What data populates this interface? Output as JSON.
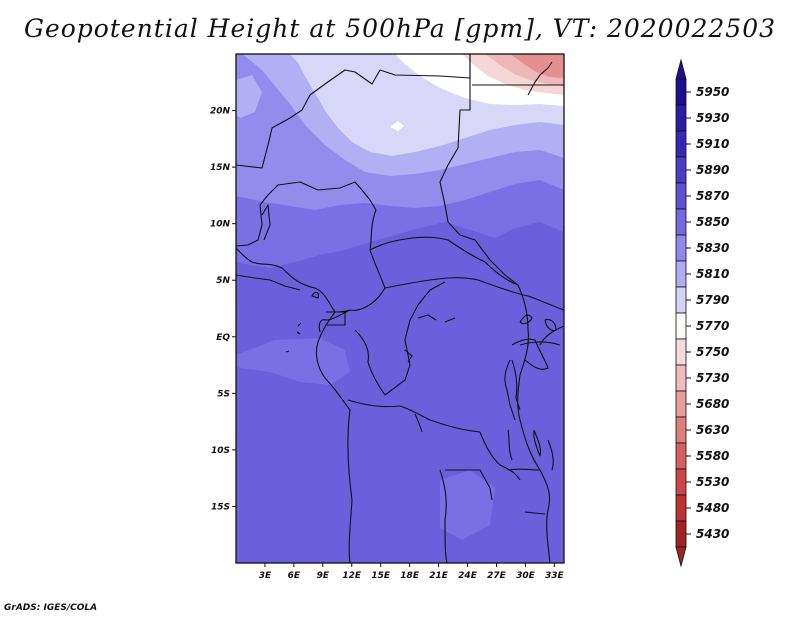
{
  "title": "Geopotential Height at 500hPa [gpm], VT: 2020022503",
  "credit": "GrADS: IGES/COLA",
  "map": {
    "lon_range": [
      0,
      34
    ],
    "lat_range": [
      -20,
      25
    ],
    "lat_ticks": [
      {
        "lat": 20,
        "label": "20N"
      },
      {
        "lat": 15,
        "label": "15N"
      },
      {
        "lat": 10,
        "label": "10N"
      },
      {
        "lat": 5,
        "label": "5N"
      },
      {
        "lat": 0,
        "label": "EQ"
      },
      {
        "lat": -5,
        "label": "5S"
      },
      {
        "lat": -10,
        "label": "10S"
      },
      {
        "lat": -15,
        "label": "15S"
      }
    ],
    "lon_ticks": [
      {
        "lon": 3,
        "label": "3E"
      },
      {
        "lon": 6,
        "label": "6E"
      },
      {
        "lon": 9,
        "label": "9E"
      },
      {
        "lon": 12,
        "label": "12E"
      },
      {
        "lon": 15,
        "label": "15E"
      },
      {
        "lon": 18,
        "label": "18E"
      },
      {
        "lon": 21,
        "label": "21E"
      },
      {
        "lon": 24,
        "label": "24E"
      },
      {
        "lon": 27,
        "label": "27E"
      },
      {
        "lon": 30,
        "label": "30E"
      },
      {
        "lon": 33,
        "label": "33E"
      }
    ]
  },
  "colorbar": {
    "levels": [
      {
        "label": "5950",
        "color": "#1f0f8f"
      },
      {
        "label": "5930",
        "color": "#2a1fa3"
      },
      {
        "label": "5910",
        "color": "#3628b5"
      },
      {
        "label": "5890",
        "color": "#4a3dc4"
      },
      {
        "label": "5870",
        "color": "#5f52d2"
      },
      {
        "label": "5850",
        "color": "#7468e0"
      },
      {
        "label": "5830",
        "color": "#9088ee"
      },
      {
        "label": "5810",
        "color": "#b0abf3"
      },
      {
        "label": "5790",
        "color": "#d4d2f7"
      },
      {
        "label": "5770",
        "color": "#fbf8f8"
      },
      {
        "label": "5750",
        "color": "#f6dada"
      },
      {
        "label": "5730",
        "color": "#efbcbc"
      },
      {
        "label": "5680",
        "color": "#e89c9c"
      },
      {
        "label": "5630",
        "color": "#e07d7d"
      },
      {
        "label": "5580",
        "color": "#d85f5f"
      },
      {
        "label": "5530",
        "color": "#cf4545"
      },
      {
        "label": "5480",
        "color": "#bf3232"
      },
      {
        "label": "5430",
        "color": "#a12222"
      }
    ],
    "top_arrow_color": "#1f0f8f",
    "bottom_arrow_color": "#a12222"
  },
  "field_colors": {
    "c5870": "#6b5fdc",
    "c5850": "#7a6fe4",
    "c5830": "#938ced",
    "c5810": "#b3aff4",
    "c5790": "#d9d7f8",
    "c5770": "#ffffff",
    "c5750": "#f6d6d6",
    "c5730": "#eeb8b8",
    "c5680": "#e59090"
  }
}
